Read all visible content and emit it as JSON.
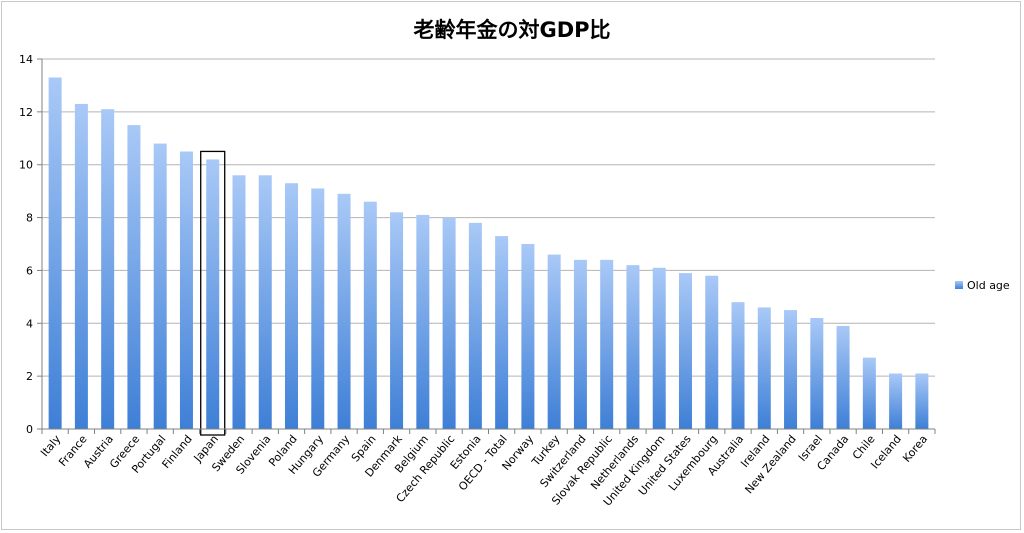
{
  "chart_data": {
    "type": "bar",
    "title": "老齢年金の対GDP比",
    "xlabel": "",
    "ylabel": "",
    "ylim": [
      0,
      14
    ],
    "yticks": [
      0,
      2,
      4,
      6,
      8,
      10,
      12,
      14
    ],
    "grid": true,
    "legend_position": "right",
    "highlighted_category": "Japan",
    "colors": {
      "bar_top": "#a9c9f7",
      "bar_bottom": "#3e7fd6",
      "grid": "#b4b4b4",
      "axis": "#808080",
      "highlight_box": "#000000"
    },
    "categories": [
      "Italy",
      "France",
      "Austria",
      "Greece",
      "Portugal",
      "Finland",
      "Japan",
      "Sweden",
      "Slovenia",
      "Poland",
      "Hungary",
      "Germany",
      "Spain",
      "Denmark",
      "Belgium",
      "Czech Republic",
      "Estonia",
      "OECD - Total",
      "Norway",
      "Turkey",
      "Switzerland",
      "Slovak Republic",
      "Netherlands",
      "United Kingdom",
      "United States",
      "Luxembourg",
      "Australia",
      "Ireland",
      "New Zealand",
      "Israel",
      "Canada",
      "Chile",
      "Iceland",
      "Korea"
    ],
    "series": [
      {
        "name": "Old age",
        "values": [
          13.3,
          12.3,
          12.1,
          11.5,
          10.8,
          10.5,
          10.2,
          9.6,
          9.6,
          9.3,
          9.1,
          8.9,
          8.6,
          8.2,
          8.1,
          8.0,
          7.8,
          7.3,
          7.0,
          6.6,
          6.4,
          6.4,
          6.2,
          6.1,
          5.9,
          5.8,
          4.8,
          4.6,
          4.5,
          4.2,
          3.9,
          2.7,
          2.1,
          2.1
        ]
      }
    ]
  }
}
